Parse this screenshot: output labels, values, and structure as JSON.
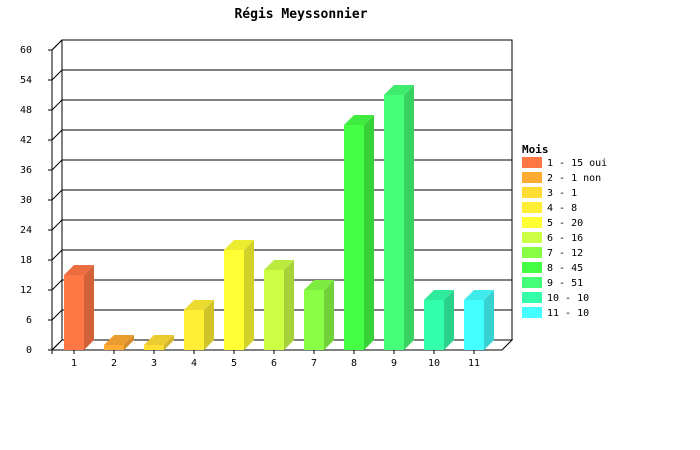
{
  "chart_data": {
    "type": "bar",
    "title": "Régis Meyssonnier",
    "xlabel": "",
    "ylabel": "",
    "ylim": [
      0,
      60
    ],
    "yticks": [
      0,
      6,
      12,
      18,
      24,
      30,
      36,
      42,
      48,
      54,
      60
    ],
    "grid": true,
    "categories": [
      "1",
      "2",
      "3",
      "4",
      "5",
      "6",
      "7",
      "8",
      "9",
      "10",
      "11"
    ],
    "values": [
      15,
      1,
      1,
      8,
      20,
      16,
      12,
      45,
      51,
      10,
      10
    ],
    "colors": [
      "#ff7744",
      "#ffaa33",
      "#ffdd33",
      "#ffee33",
      "#ffff33",
      "#ccff44",
      "#88ff44",
      "#44ff44",
      "#44ff77",
      "#33ffaa",
      "#44ffff"
    ],
    "legend": {
      "title": "Mois",
      "position": "right",
      "entries": [
        "1 - 15 oui",
        "2 - 1 non",
        "3 - 1",
        "4 - 8",
        "5 - 20",
        "6 - 16",
        "7 - 12",
        "8 - 45",
        "9 - 51",
        "10 - 10",
        "11 - 10"
      ]
    }
  }
}
